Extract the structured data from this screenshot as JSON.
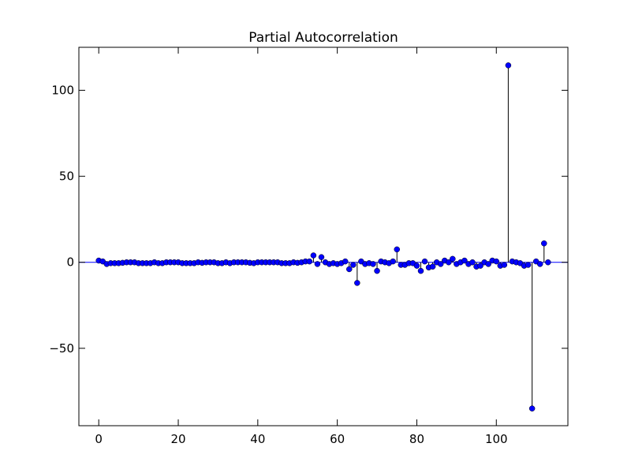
{
  "chart_data": {
    "type": "stem",
    "title": "Partial Autocorrelation",
    "xlabel": "",
    "ylabel": "",
    "xlim": [
      -5,
      118
    ],
    "ylim": [
      -95,
      125
    ],
    "xticks": [
      0,
      20,
      40,
      60,
      80,
      100
    ],
    "yticks": [
      -50,
      0,
      50,
      100
    ],
    "ytick_labels": [
      "−50",
      "0",
      "50",
      "100"
    ],
    "grid": false,
    "colors": {
      "marker": "#0000ff",
      "stem": "#000000",
      "baseline": "#0000ff"
    },
    "x": [
      0,
      1,
      2,
      3,
      4,
      5,
      6,
      7,
      8,
      9,
      10,
      11,
      12,
      13,
      14,
      15,
      16,
      17,
      18,
      19,
      20,
      21,
      22,
      23,
      24,
      25,
      26,
      27,
      28,
      29,
      30,
      31,
      32,
      33,
      34,
      35,
      36,
      37,
      38,
      39,
      40,
      41,
      42,
      43,
      44,
      45,
      46,
      47,
      48,
      49,
      50,
      51,
      52,
      53,
      54,
      55,
      56,
      57,
      58,
      59,
      60,
      61,
      62,
      63,
      64,
      65,
      66,
      67,
      68,
      69,
      70,
      71,
      72,
      73,
      74,
      75,
      76,
      77,
      78,
      79,
      80,
      81,
      82,
      83,
      84,
      85,
      86,
      87,
      88,
      89,
      90,
      91,
      92,
      93,
      94,
      95,
      96,
      97,
      98,
      99,
      100,
      101,
      102,
      103,
      104,
      105,
      106,
      107,
      108,
      109,
      110,
      111,
      112,
      113
    ],
    "values": [
      1.0,
      0.5,
      -1.0,
      -0.5,
      -0.5,
      -0.5,
      -0.3,
      0.0,
      0.0,
      0.0,
      -0.5,
      -0.5,
      -0.5,
      -0.5,
      0.0,
      -0.5,
      -0.5,
      0.0,
      0.0,
      0.0,
      0.0,
      -0.5,
      -0.5,
      -0.5,
      -0.5,
      0.0,
      -0.3,
      0.0,
      0.0,
      0.0,
      -0.5,
      -0.5,
      0.0,
      -0.5,
      0.0,
      0.0,
      0.0,
      0.0,
      -0.3,
      -0.5,
      0.0,
      0.0,
      0.0,
      0.0,
      0.0,
      0.0,
      -0.5,
      -0.5,
      -0.5,
      0.0,
      -0.3,
      0.0,
      0.5,
      0.5,
      4.0,
      -1.0,
      3.0,
      0.0,
      -1.0,
      -0.5,
      -1.0,
      -0.5,
      0.5,
      -4.0,
      -1.5,
      -12.0,
      0.5,
      -1.0,
      -0.5,
      -1.0,
      -5.0,
      0.5,
      0.0,
      -0.5,
      0.5,
      7.5,
      -1.5,
      -1.5,
      -0.5,
      -0.5,
      -2.0,
      -5.0,
      0.5,
      -3.0,
      -2.5,
      0.0,
      -1.0,
      1.0,
      0.0,
      2.0,
      -1.0,
      0.0,
      1.0,
      -1.0,
      0.0,
      -2.5,
      -2.0,
      0.0,
      -1.0,
      1.0,
      0.5,
      -2.0,
      -1.5,
      114.5,
      0.5,
      0.0,
      -0.5,
      -2.0,
      -1.5,
      -85.0,
      0.5,
      -1.0,
      11.0,
      0.0
    ]
  }
}
